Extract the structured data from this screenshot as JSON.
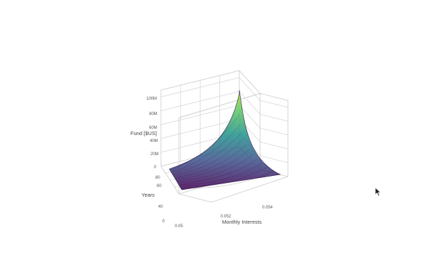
{
  "chart_data": {
    "type": "surface",
    "title": "",
    "xlabel": "Monthly Interests",
    "ylabel": "Years",
    "zlabel": "Fund [$US]",
    "x_ticks": [
      "0.05",
      "0.052",
      "0.054"
    ],
    "y_ticks": [
      "0",
      "40",
      "60",
      "80"
    ],
    "z_ticks": [
      "0",
      "20M",
      "40M",
      "60M",
      "80M",
      "100M"
    ],
    "xlim": [
      0.05,
      0.055
    ],
    "ylim": [
      0,
      100
    ],
    "zlim": [
      0,
      110000000
    ],
    "surface": {
      "x": [
        0.05,
        0.055
      ],
      "y": [
        0,
        100
      ],
      "z": [
        [
          0,
          0
        ],
        [
          0,
          110000000
        ]
      ],
      "min_fund": 0,
      "max_fund": 110000000
    },
    "colorscale": [
      "#440154",
      "#3b528b",
      "#21918c",
      "#5ec962",
      "#bddf26"
    ],
    "grid": true,
    "legend": "none"
  },
  "ui": {
    "cursor_icon": "mouse-pointer-icon"
  }
}
